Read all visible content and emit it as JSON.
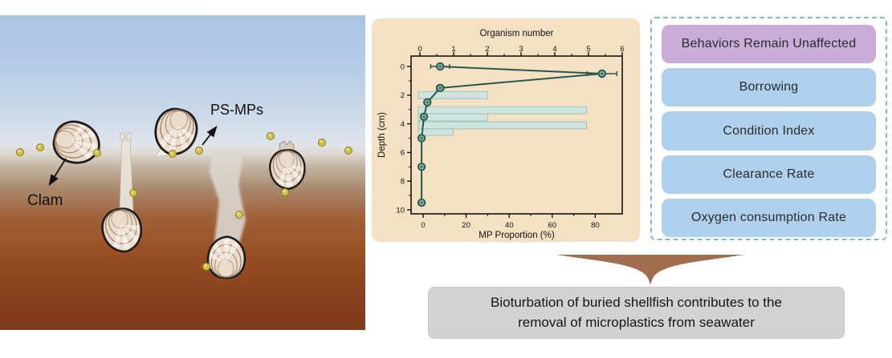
{
  "figure": {
    "left_panel": {
      "labels": {
        "clam": "Clam",
        "ps_mps": "PS-MPs"
      },
      "colors": {
        "water_top": "#a9c4e2",
        "water_bottom": "#e0e4e9",
        "sediment_top": "#c4b5a2",
        "sediment_bottom": "#7d3a1a",
        "microplastic": "#d2c34e",
        "shell": "#eadaca"
      }
    },
    "effects_panel": {
      "border_color": "#85c0ae",
      "items": [
        {
          "label": "Behaviors Remain Unaffected",
          "color": "#c9acd8"
        },
        {
          "label": "Borrowing",
          "color": "#aed0ec"
        },
        {
          "label": "Condition Index",
          "color": "#aed0ec"
        },
        {
          "label": "Clearance Rate",
          "color": "#aed0ec"
        },
        {
          "label": "Oxygen consumption Rate",
          "color": "#aed0ec"
        }
      ]
    },
    "conclusion": {
      "lines": [
        "Bioturbation of buried shellfish contributes to the",
        "removal of microplastics from seawater"
      ],
      "brace_color": "#a06e4e",
      "box_color": "#d2d2d2"
    }
  },
  "chart_data": {
    "type": "line+bar",
    "background": "#f4e1c3",
    "top_axis": {
      "label": "Organism number",
      "min": 0,
      "max": 6,
      "ticks": [
        0,
        1,
        2,
        3,
        4,
        5,
        6
      ],
      "minor_ticks": [
        0.5,
        1.5,
        2.5,
        3.5,
        4.5,
        5.5
      ]
    },
    "bottom_axis": {
      "label": "MP Proportion (%)",
      "min": 0,
      "max": 94,
      "ticks": [
        0,
        20,
        40,
        60,
        80
      ],
      "minor_ticks": [
        10,
        30,
        50,
        70
      ]
    },
    "left_axis": {
      "label": "Depth (cm)",
      "min": 0,
      "max": 10,
      "inverted": true,
      "ticks": [
        0,
        2,
        4,
        6,
        8,
        10
      ],
      "minor_ticks": [
        1,
        3,
        5,
        7,
        9
      ]
    },
    "line_series": {
      "name": "Organism number by depth",
      "color": "#2a564d",
      "marker_fill": "#7aada2",
      "points": [
        {
          "depth": 0,
          "value": 0.6,
          "err": 0.28
        },
        {
          "depth": 0.5,
          "value": 5.4,
          "err": 0.44
        },
        {
          "depth": 1.5,
          "value": 0.6,
          "err": 0.1
        },
        {
          "depth": 2.5,
          "value": 0.22,
          "err": 0
        },
        {
          "depth": 3.5,
          "value": 0.12,
          "err": 0
        },
        {
          "depth": 5,
          "value": 0.05,
          "err": 0
        },
        {
          "depth": 7,
          "value": 0.05,
          "err": 0
        },
        {
          "depth": 9.5,
          "value": 0.05,
          "err": 0
        }
      ]
    },
    "bar_series": {
      "name": "MP Proportion (%) by depth",
      "fill": "#cfe4de",
      "stroke": "#9dc3ba",
      "bars": [
        {
          "depth_from": 1.75,
          "depth_to": 2.25,
          "value": 30
        },
        {
          "depth_from": 2.8,
          "depth_to": 3.3,
          "value": 76
        },
        {
          "depth_from": 3.3,
          "depth_to": 3.8,
          "value": 30
        },
        {
          "depth_from": 3.85,
          "depth_to": 4.35,
          "value": 76
        },
        {
          "depth_from": 4.35,
          "depth_to": 4.8,
          "value": 14
        }
      ]
    }
  }
}
